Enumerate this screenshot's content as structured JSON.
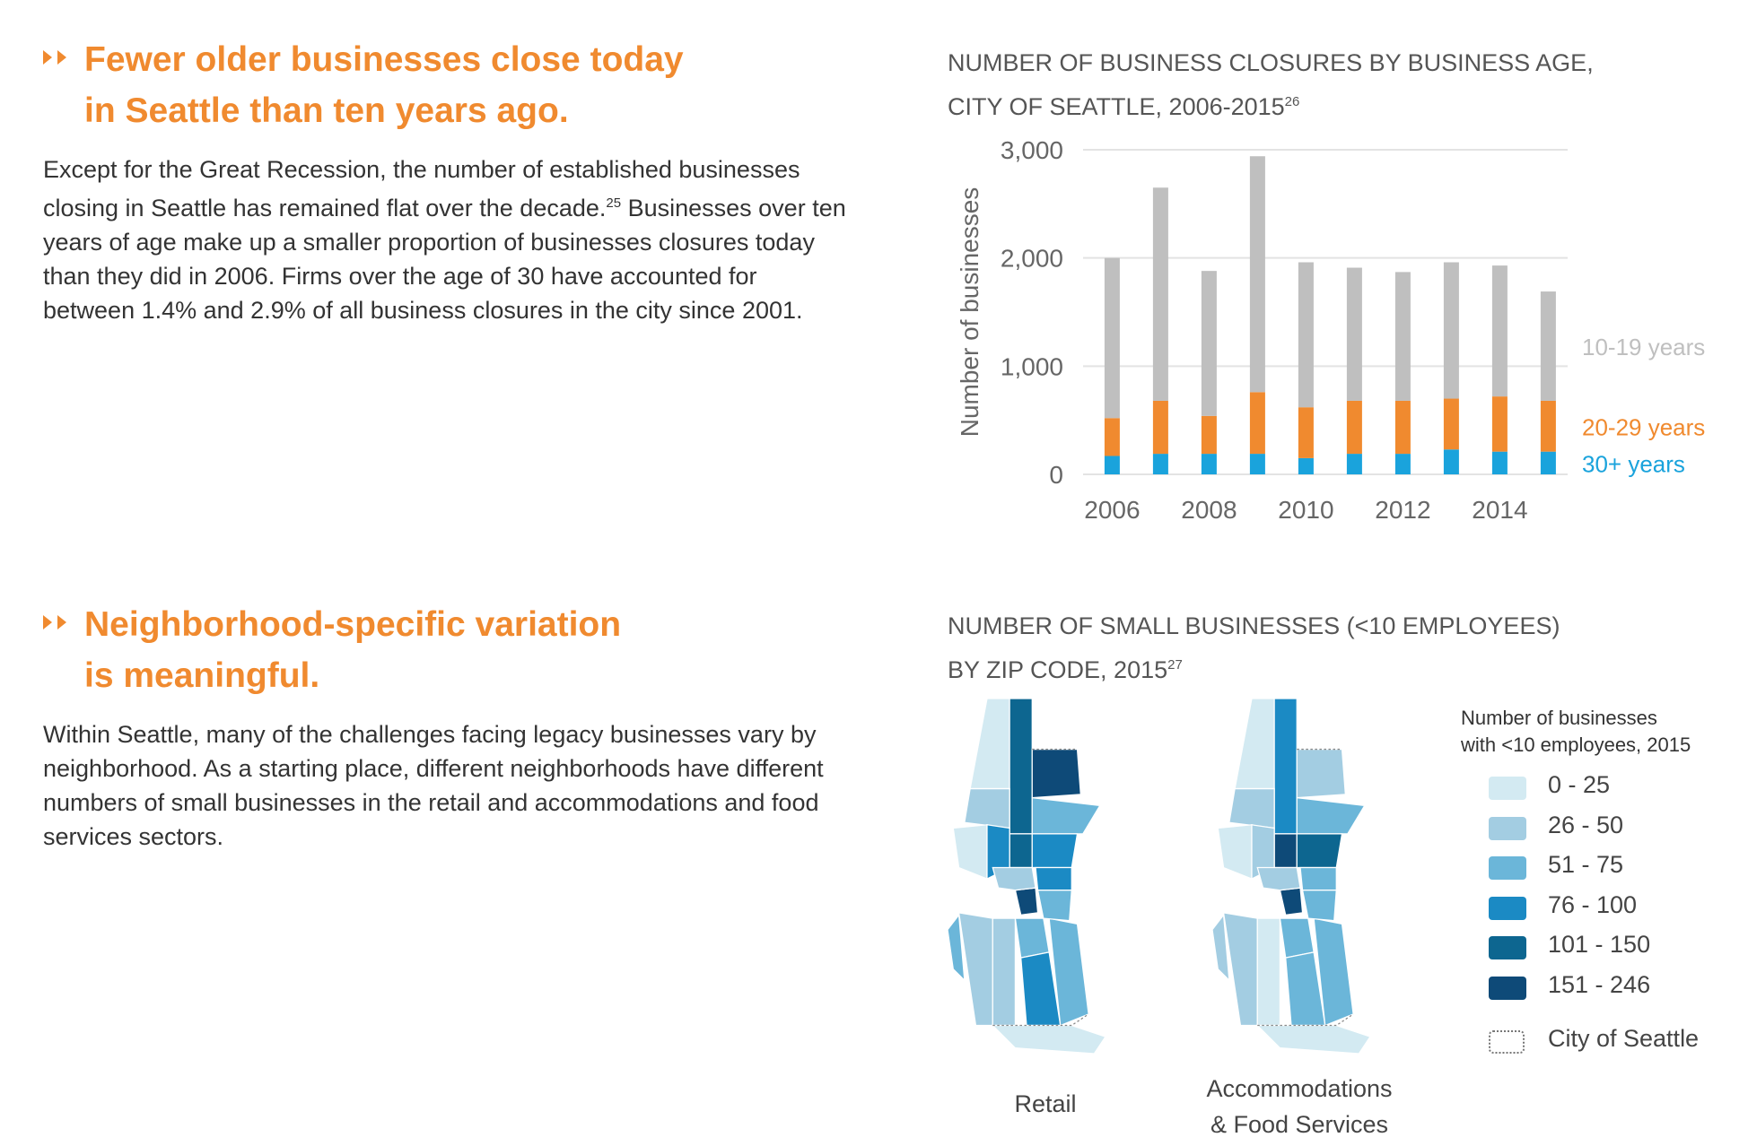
{
  "sections": [
    {
      "heading": [
        "Fewer older businesses close today",
        "in Seattle than ten years ago."
      ],
      "body": [
        "Except for the Great Recession, the number of established businesses closing in Seattle has remained flat over the decade.",
        "Businesses over ten years of age make up a smaller proportion of businesses closures today than they did in 2006. Firms over the age of 30 have accounted for between 1.4% and 2.9% of all business closures in the city since 2001."
      ],
      "body_note": "25"
    },
    {
      "heading": [
        "Neighborhood-specific variation",
        "is meaningful."
      ],
      "body": [
        "Within Seattle, many of the challenges facing legacy businesses vary by neighborhood. As a starting place, different neighborhoods have different numbers of small businesses in the retail and accommodations and food services sectors."
      ]
    }
  ],
  "chart_data": {
    "type": "bar",
    "stacked": true,
    "title": [
      "NUMBER OF BUSINESS CLOSURES BY BUSINESS AGE,",
      "CITY OF SEATTLE, 2006-2015"
    ],
    "title_note": "26",
    "y_label": "Number of businesses",
    "x": [
      2006,
      2007,
      2008,
      2009,
      2010,
      2011,
      2012,
      2013,
      2014,
      2015
    ],
    "xlim": [
      2005.4,
      2015.4
    ],
    "xticks": [
      2006,
      2008,
      2010,
      2012,
      2014
    ],
    "ylim": [
      0,
      3000
    ],
    "yticks": [
      0,
      {
        "value": 1000,
        "label": "1,000"
      },
      {
        "value": 2000,
        "label": "2,000"
      },
      {
        "value": 3000,
        "label": "3,000"
      }
    ],
    "grid": true,
    "series": [
      {
        "name": "30+ years",
        "color": "#1aa3dc",
        "values": [
          170,
          190,
          190,
          190,
          150,
          190,
          190,
          230,
          210,
          210
        ]
      },
      {
        "name": "20-29 years",
        "color": "#f08a2f",
        "values": [
          350,
          490,
          350,
          570,
          470,
          490,
          490,
          470,
          510,
          470
        ]
      },
      {
        "name": "10-19 years",
        "color": "#bfbfbf",
        "values": [
          1480,
          1970,
          1340,
          2180,
          1340,
          1230,
          1190,
          1260,
          1210,
          1010
        ]
      }
    ]
  },
  "map": {
    "title": [
      "NUMBER OF SMALL BUSINESSES (<10 EMPLOYEES)",
      "BY ZIP CODE, 2015"
    ],
    "title_note": "27",
    "panels": [
      [
        "Retail"
      ],
      [
        "Accommodations",
        "& Food Services"
      ]
    ],
    "legend_title": [
      "Number of businesses",
      "with <10 employees, 2015"
    ],
    "legend": [
      {
        "label": "0 - 25",
        "color": "#d3eaf2"
      },
      {
        "label": "26 - 50",
        "color": "#a3cde2"
      },
      {
        "label": "51 - 75",
        "color": "#6bb6d9"
      },
      {
        "label": "76 - 100",
        "color": "#1b8ac4"
      },
      {
        "label": "101 - 150",
        "color": "#0d6690"
      },
      {
        "label": "151 - 246",
        "color": "#0e4a78"
      }
    ],
    "boundary_label": "City of Seattle"
  }
}
